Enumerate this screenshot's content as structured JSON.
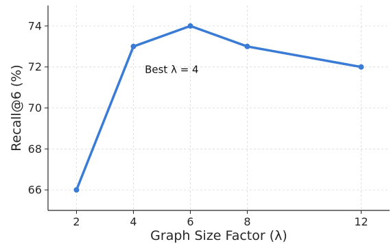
{
  "chart_data": {
    "type": "line",
    "x": [
      2,
      4,
      6,
      8,
      12
    ],
    "series": [
      {
        "values": [
          66,
          73,
          74,
          73,
          72
        ],
        "color": "#3a7bd5"
      }
    ],
    "xticks": [
      "2",
      "4",
      "6",
      "8",
      "12"
    ],
    "yticks": [
      "66",
      "68",
      "70",
      "72",
      "74"
    ],
    "xlabel": "Graph Size Factor (λ)",
    "ylabel": "Recall@6 (%)",
    "xlim": [
      1.0,
      13.0
    ],
    "ylim": [
      65.0,
      75.0
    ],
    "grid": true,
    "annotation": {
      "text": "Best λ = 4",
      "x": 4.4,
      "y": 71.7
    }
  }
}
